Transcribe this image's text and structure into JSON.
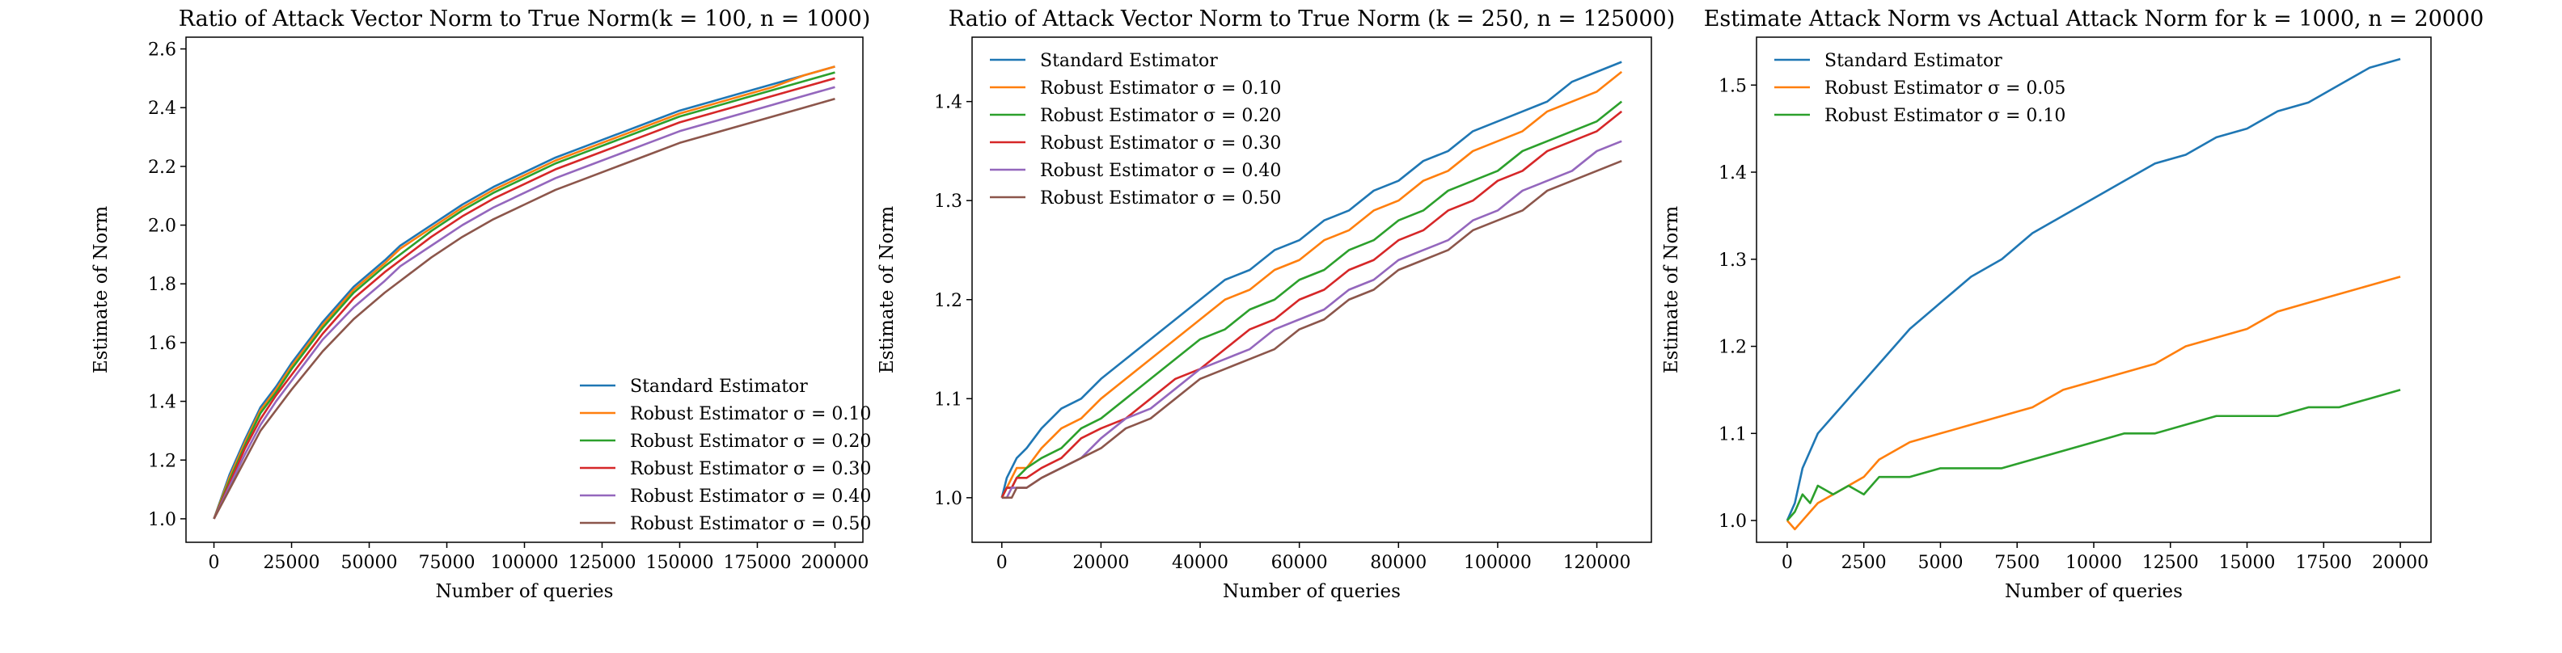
{
  "chart_data": [
    {
      "type": "line",
      "title": "Ratio of Attack Vector Norm to True Norm(k = 100, n = 1000)",
      "xlabel": "Number of queries",
      "ylabel": "Estimate of Norm",
      "xlim": [
        -9000,
        209000
      ],
      "ylim": [
        0.92,
        2.64
      ],
      "xticks": [
        0,
        25000,
        50000,
        75000,
        100000,
        125000,
        150000,
        175000,
        200000
      ],
      "yticks": [
        1.0,
        1.2,
        1.4,
        1.6,
        1.8,
        2.0,
        2.2,
        2.4,
        2.6
      ],
      "ytick_decimals": 1,
      "grid": false,
      "legend_position": "lower-right",
      "series": [
        {
          "name": "Standard Estimator",
          "color": "#1f77b4",
          "x": [
            0,
            5000,
            10000,
            15000,
            20000,
            25000,
            35000,
            45000,
            55000,
            60000,
            70000,
            80000,
            90000,
            100000,
            110000,
            120000,
            130000,
            140000,
            150000,
            160000,
            170000,
            180000,
            190000,
            200000
          ],
          "y": [
            1.0,
            1.15,
            1.27,
            1.38,
            1.45,
            1.53,
            1.67,
            1.79,
            1.88,
            1.93,
            2.0,
            2.07,
            2.13,
            2.18,
            2.23,
            2.27,
            2.31,
            2.35,
            2.39,
            2.42,
            2.45,
            2.48,
            2.51,
            2.54
          ]
        },
        {
          "name": "Robust Estimator σ = 0.10",
          "color": "#ff7f0e",
          "x": [
            0,
            5000,
            10000,
            15000,
            20000,
            25000,
            35000,
            45000,
            55000,
            60000,
            70000,
            80000,
            90000,
            100000,
            110000,
            120000,
            130000,
            140000,
            150000,
            160000,
            170000,
            180000,
            190000,
            200000
          ],
          "y": [
            1.0,
            1.14,
            1.26,
            1.37,
            1.44,
            1.52,
            1.66,
            1.78,
            1.87,
            1.92,
            1.99,
            2.06,
            2.12,
            2.17,
            2.22,
            2.26,
            2.3,
            2.34,
            2.38,
            2.41,
            2.44,
            2.47,
            2.51,
            2.54
          ]
        },
        {
          "name": "Robust Estimator σ = 0.20",
          "color": "#2ca02c",
          "x": [
            0,
            5000,
            10000,
            15000,
            20000,
            25000,
            35000,
            45000,
            55000,
            60000,
            70000,
            80000,
            90000,
            100000,
            110000,
            120000,
            130000,
            140000,
            150000,
            160000,
            170000,
            180000,
            190000,
            200000
          ],
          "y": [
            1.0,
            1.13,
            1.25,
            1.36,
            1.43,
            1.51,
            1.65,
            1.77,
            1.86,
            1.9,
            1.98,
            2.05,
            2.11,
            2.16,
            2.21,
            2.25,
            2.29,
            2.33,
            2.37,
            2.4,
            2.43,
            2.46,
            2.49,
            2.52
          ]
        },
        {
          "name": "Robust Estimator σ = 0.30",
          "color": "#d62728",
          "x": [
            0,
            5000,
            10000,
            15000,
            20000,
            25000,
            35000,
            45000,
            55000,
            60000,
            70000,
            80000,
            90000,
            100000,
            110000,
            120000,
            130000,
            140000,
            150000,
            160000,
            170000,
            180000,
            190000,
            200000
          ],
          "y": [
            1.0,
            1.12,
            1.24,
            1.34,
            1.42,
            1.49,
            1.63,
            1.75,
            1.84,
            1.88,
            1.96,
            2.03,
            2.09,
            2.14,
            2.19,
            2.23,
            2.27,
            2.31,
            2.35,
            2.38,
            2.41,
            2.44,
            2.47,
            2.5
          ]
        },
        {
          "name": "Robust Estimator σ = 0.40",
          "color": "#9467bd",
          "x": [
            0,
            5000,
            10000,
            15000,
            20000,
            25000,
            35000,
            45000,
            55000,
            60000,
            70000,
            80000,
            90000,
            100000,
            110000,
            120000,
            130000,
            140000,
            150000,
            160000,
            170000,
            180000,
            190000,
            200000
          ],
          "y": [
            1.0,
            1.11,
            1.22,
            1.32,
            1.4,
            1.47,
            1.61,
            1.72,
            1.81,
            1.86,
            1.93,
            2.0,
            2.06,
            2.11,
            2.16,
            2.2,
            2.24,
            2.28,
            2.32,
            2.35,
            2.38,
            2.41,
            2.44,
            2.47
          ]
        },
        {
          "name": "Robust Estimator σ = 0.50",
          "color": "#8c564b",
          "x": [
            0,
            5000,
            10000,
            15000,
            20000,
            25000,
            35000,
            45000,
            55000,
            60000,
            70000,
            80000,
            90000,
            100000,
            110000,
            120000,
            130000,
            140000,
            150000,
            160000,
            170000,
            180000,
            190000,
            200000
          ],
          "y": [
            1.0,
            1.1,
            1.2,
            1.3,
            1.37,
            1.44,
            1.57,
            1.68,
            1.77,
            1.81,
            1.89,
            1.96,
            2.02,
            2.07,
            2.12,
            2.16,
            2.2,
            2.24,
            2.28,
            2.31,
            2.34,
            2.37,
            2.4,
            2.43
          ]
        }
      ]
    },
    {
      "type": "line",
      "title": "Ratio of Attack Vector Norm to True Norm (k = 250, n = 125000)",
      "xlabel": "Number of queries",
      "ylabel": "Estimate of Norm",
      "xlim": [
        -6000,
        131000
      ],
      "ylim": [
        0.955,
        1.465
      ],
      "xticks": [
        0,
        20000,
        40000,
        60000,
        80000,
        100000,
        120000
      ],
      "yticks": [
        1.0,
        1.1,
        1.2,
        1.3,
        1.4
      ],
      "ytick_decimals": 1,
      "grid": false,
      "legend_position": "upper-left",
      "series": [
        {
          "name": "Standard Estimator",
          "color": "#1f77b4",
          "x": [
            0,
            1000,
            2000,
            3000,
            5000,
            8000,
            12000,
            16000,
            20000,
            25000,
            30000,
            35000,
            40000,
            45000,
            50000,
            55000,
            60000,
            65000,
            70000,
            75000,
            80000,
            85000,
            90000,
            95000,
            100000,
            105000,
            110000,
            115000,
            120000,
            125000
          ],
          "y": [
            1.0,
            1.02,
            1.03,
            1.04,
            1.05,
            1.07,
            1.09,
            1.1,
            1.12,
            1.14,
            1.16,
            1.18,
            1.2,
            1.22,
            1.23,
            1.25,
            1.26,
            1.28,
            1.29,
            1.31,
            1.32,
            1.34,
            1.35,
            1.37,
            1.38,
            1.39,
            1.4,
            1.42,
            1.43,
            1.44
          ]
        },
        {
          "name": "Robust Estimator σ = 0.10",
          "color": "#ff7f0e",
          "x": [
            0,
            1000,
            2000,
            3000,
            5000,
            8000,
            12000,
            16000,
            20000,
            25000,
            30000,
            35000,
            40000,
            45000,
            50000,
            55000,
            60000,
            65000,
            70000,
            75000,
            80000,
            85000,
            90000,
            95000,
            100000,
            105000,
            110000,
            115000,
            120000,
            125000
          ],
          "y": [
            1.0,
            1.01,
            1.02,
            1.03,
            1.03,
            1.05,
            1.07,
            1.08,
            1.1,
            1.12,
            1.14,
            1.16,
            1.18,
            1.2,
            1.21,
            1.23,
            1.24,
            1.26,
            1.27,
            1.29,
            1.3,
            1.32,
            1.33,
            1.35,
            1.36,
            1.37,
            1.39,
            1.4,
            1.41,
            1.43
          ]
        },
        {
          "name": "Robust Estimator σ = 0.20",
          "color": "#2ca02c",
          "x": [
            0,
            1000,
            2000,
            3000,
            5000,
            8000,
            12000,
            16000,
            20000,
            25000,
            30000,
            35000,
            40000,
            45000,
            50000,
            55000,
            60000,
            65000,
            70000,
            75000,
            80000,
            85000,
            90000,
            95000,
            100000,
            105000,
            110000,
            115000,
            120000,
            125000
          ],
          "y": [
            1.0,
            1.01,
            1.01,
            1.02,
            1.03,
            1.04,
            1.05,
            1.07,
            1.08,
            1.1,
            1.12,
            1.14,
            1.16,
            1.17,
            1.19,
            1.2,
            1.22,
            1.23,
            1.25,
            1.26,
            1.28,
            1.29,
            1.31,
            1.32,
            1.33,
            1.35,
            1.36,
            1.37,
            1.38,
            1.4
          ]
        },
        {
          "name": "Robust Estimator σ = 0.30",
          "color": "#d62728",
          "x": [
            0,
            1000,
            2000,
            3000,
            5000,
            8000,
            12000,
            16000,
            20000,
            25000,
            30000,
            35000,
            40000,
            45000,
            50000,
            55000,
            60000,
            65000,
            70000,
            75000,
            80000,
            85000,
            90000,
            95000,
            100000,
            105000,
            110000,
            115000,
            120000,
            125000
          ],
          "y": [
            1.0,
            1.01,
            1.01,
            1.02,
            1.02,
            1.03,
            1.04,
            1.06,
            1.07,
            1.08,
            1.1,
            1.12,
            1.13,
            1.15,
            1.17,
            1.18,
            1.2,
            1.21,
            1.23,
            1.24,
            1.26,
            1.27,
            1.29,
            1.3,
            1.32,
            1.33,
            1.35,
            1.36,
            1.37,
            1.39
          ]
        },
        {
          "name": "Robust Estimator σ = 0.40",
          "color": "#9467bd",
          "x": [
            0,
            1000,
            2000,
            3000,
            5000,
            8000,
            12000,
            16000,
            20000,
            25000,
            30000,
            35000,
            40000,
            45000,
            50000,
            55000,
            60000,
            65000,
            70000,
            75000,
            80000,
            85000,
            90000,
            95000,
            100000,
            105000,
            110000,
            115000,
            120000,
            125000
          ],
          "y": [
            1.0,
            1.0,
            1.01,
            1.01,
            1.01,
            1.02,
            1.03,
            1.04,
            1.06,
            1.08,
            1.09,
            1.11,
            1.13,
            1.14,
            1.15,
            1.17,
            1.18,
            1.19,
            1.21,
            1.22,
            1.24,
            1.25,
            1.26,
            1.28,
            1.29,
            1.31,
            1.32,
            1.33,
            1.35,
            1.36
          ]
        },
        {
          "name": "Robust Estimator σ = 0.50",
          "color": "#8c564b",
          "x": [
            0,
            1000,
            2000,
            3000,
            5000,
            8000,
            12000,
            16000,
            20000,
            25000,
            30000,
            35000,
            40000,
            45000,
            50000,
            55000,
            60000,
            65000,
            70000,
            75000,
            80000,
            85000,
            90000,
            95000,
            100000,
            105000,
            110000,
            115000,
            120000,
            125000
          ],
          "y": [
            1.0,
            1.0,
            1.0,
            1.01,
            1.01,
            1.02,
            1.03,
            1.04,
            1.05,
            1.07,
            1.08,
            1.1,
            1.12,
            1.13,
            1.14,
            1.15,
            1.17,
            1.18,
            1.2,
            1.21,
            1.23,
            1.24,
            1.25,
            1.27,
            1.28,
            1.29,
            1.31,
            1.32,
            1.33,
            1.34
          ]
        }
      ]
    },
    {
      "type": "line",
      "title": "Estimate Attack Norm vs Actual Attack Norm for k = 1000, n = 20000",
      "xlabel": "Number of queries",
      "ylabel": "Estimate of Norm",
      "xlim": [
        -1000,
        21000
      ],
      "ylim": [
        0.975,
        1.555
      ],
      "xticks": [
        0,
        2500,
        5000,
        7500,
        10000,
        12500,
        15000,
        17500,
        20000
      ],
      "yticks": [
        1.0,
        1.1,
        1.2,
        1.3,
        1.4,
        1.5
      ],
      "ytick_decimals": 1,
      "grid": false,
      "legend_position": "upper-left",
      "series": [
        {
          "name": "Standard Estimator",
          "color": "#1f77b4",
          "x": [
            0,
            250,
            500,
            750,
            1000,
            1500,
            2000,
            2500,
            3000,
            4000,
            5000,
            6000,
            7000,
            8000,
            9000,
            10000,
            11000,
            12000,
            13000,
            14000,
            15000,
            16000,
            17000,
            18000,
            19000,
            20000
          ],
          "y": [
            1.0,
            1.02,
            1.06,
            1.08,
            1.1,
            1.12,
            1.14,
            1.16,
            1.18,
            1.22,
            1.25,
            1.28,
            1.3,
            1.33,
            1.35,
            1.37,
            1.39,
            1.41,
            1.42,
            1.44,
            1.45,
            1.47,
            1.48,
            1.5,
            1.52,
            1.53
          ]
        },
        {
          "name": "Robust Estimator σ = 0.05",
          "color": "#ff7f0e",
          "x": [
            0,
            250,
            500,
            750,
            1000,
            1500,
            2000,
            2500,
            3000,
            4000,
            5000,
            6000,
            7000,
            8000,
            9000,
            10000,
            11000,
            12000,
            13000,
            14000,
            15000,
            16000,
            17000,
            18000,
            19000,
            20000
          ],
          "y": [
            1.0,
            0.99,
            1.0,
            1.01,
            1.02,
            1.03,
            1.04,
            1.05,
            1.07,
            1.09,
            1.1,
            1.11,
            1.12,
            1.13,
            1.15,
            1.16,
            1.17,
            1.18,
            1.2,
            1.21,
            1.22,
            1.24,
            1.25,
            1.26,
            1.27,
            1.28
          ]
        },
        {
          "name": "Robust Estimator σ = 0.10",
          "color": "#2ca02c",
          "x": [
            0,
            250,
            500,
            750,
            1000,
            1500,
            2000,
            2500,
            3000,
            4000,
            5000,
            6000,
            7000,
            8000,
            9000,
            10000,
            11000,
            12000,
            13000,
            14000,
            15000,
            16000,
            17000,
            18000,
            19000,
            20000
          ],
          "y": [
            1.0,
            1.01,
            1.03,
            1.02,
            1.04,
            1.03,
            1.04,
            1.03,
            1.05,
            1.05,
            1.06,
            1.06,
            1.06,
            1.07,
            1.08,
            1.09,
            1.1,
            1.1,
            1.11,
            1.12,
            1.12,
            1.12,
            1.13,
            1.13,
            1.14,
            1.15
          ]
        }
      ]
    }
  ]
}
